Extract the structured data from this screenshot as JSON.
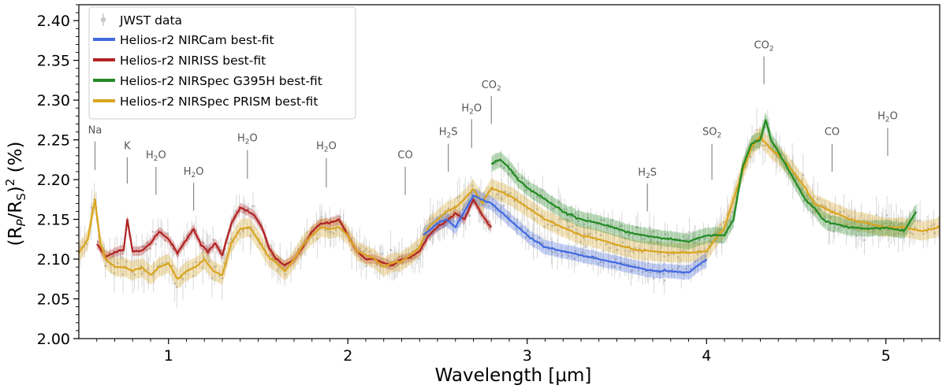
{
  "chart_data": {
    "type": "line",
    "xlabel": "Wavelength [μm]",
    "ylabel_main": "(R",
    "ylabel_sub1": "P",
    "ylabel_mid": "/R",
    "ylabel_sub2": "S",
    "ylabel_close": ")",
    "ylabel_sup": "2",
    "ylabel_unit": " (%)",
    "xlim": [
      0.5,
      5.3
    ],
    "ylim": [
      2.0,
      2.42
    ],
    "x_ticks": [
      1,
      2,
      3,
      4,
      5
    ],
    "x_tick_labels": [
      "1",
      "2",
      "3",
      "4",
      "5"
    ],
    "y_ticks": [
      2.0,
      2.05,
      2.1,
      2.15,
      2.2,
      2.25,
      2.3,
      2.35,
      2.4
    ],
    "y_tick_labels": [
      "2.00",
      "2.05",
      "2.10",
      "2.15",
      "2.20",
      "2.25",
      "2.30",
      "2.35",
      "2.40"
    ],
    "legend": {
      "placement": "top-left",
      "entries": [
        {
          "label": "JWST data",
          "kind": "errorbar",
          "color": "#c8c8c8"
        },
        {
          "label": "Helios-r2 NIRCam best-fit",
          "kind": "line",
          "color": "#4169e1"
        },
        {
          "label": "Helios-r2 NIRISS best-fit",
          "kind": "line",
          "color": "#b22222"
        },
        {
          "label": "Helios-r2 NIRSpec G395H best-fit",
          "kind": "line",
          "color": "#228b22"
        },
        {
          "label": "Helios-r2 NIRSpec PRISM best-fit",
          "kind": "line",
          "color": "#daa520"
        }
      ]
    },
    "annotations": [
      {
        "main": "Na",
        "sub": "",
        "tail": "",
        "x": 0.59,
        "y_text": 2.258,
        "y_line_top": 2.248,
        "y_line_bottom": 2.212
      },
      {
        "main": "K",
        "sub": "",
        "tail": "",
        "x": 0.77,
        "y_text": 2.238,
        "y_line_top": 2.228,
        "y_line_bottom": 2.195
      },
      {
        "main": "H",
        "sub": "2",
        "tail": "O",
        "x": 0.93,
        "y_text": 2.227,
        "y_line_top": 2.216,
        "y_line_bottom": 2.181
      },
      {
        "main": "H",
        "sub": "2",
        "tail": "O",
        "x": 1.14,
        "y_text": 2.206,
        "y_line_top": 2.196,
        "y_line_bottom": 2.161
      },
      {
        "main": "H",
        "sub": "2",
        "tail": "O",
        "x": 1.44,
        "y_text": 2.248,
        "y_line_top": 2.237,
        "y_line_bottom": 2.201
      },
      {
        "main": "H",
        "sub": "2",
        "tail": "O",
        "x": 1.88,
        "y_text": 2.238,
        "y_line_top": 2.227,
        "y_line_bottom": 2.19
      },
      {
        "main": "CO",
        "sub": "",
        "tail": "",
        "x": 2.32,
        "y_text": 2.227,
        "y_line_top": 2.216,
        "y_line_bottom": 2.181
      },
      {
        "main": "H",
        "sub": "2",
        "tail": "S",
        "x": 2.56,
        "y_text": 2.256,
        "y_line_top": 2.245,
        "y_line_bottom": 2.21
      },
      {
        "main": "H",
        "sub": "2",
        "tail": "O",
        "x": 2.69,
        "y_text": 2.286,
        "y_line_top": 2.276,
        "y_line_bottom": 2.24
      },
      {
        "main": "CO",
        "sub": "2",
        "tail": "",
        "x": 2.8,
        "y_text": 2.315,
        "y_line_top": 2.305,
        "y_line_bottom": 2.27
      },
      {
        "main": "H",
        "sub": "2",
        "tail": "S",
        "x": 3.67,
        "y_text": 2.205,
        "y_line_top": 2.195,
        "y_line_bottom": 2.16
      },
      {
        "main": "SO",
        "sub": "2",
        "tail": "",
        "x": 4.03,
        "y_text": 2.256,
        "y_line_top": 2.245,
        "y_line_bottom": 2.2
      },
      {
        "main": "CO",
        "sub": "2",
        "tail": "",
        "x": 4.32,
        "y_text": 2.365,
        "y_line_top": 2.355,
        "y_line_bottom": 2.32
      },
      {
        "main": "CO",
        "sub": "",
        "tail": "",
        "x": 4.7,
        "y_text": 2.256,
        "y_line_top": 2.245,
        "y_line_bottom": 2.21
      },
      {
        "main": "H",
        "sub": "2",
        "tail": "O",
        "x": 5.01,
        "y_text": 2.276,
        "y_line_top": 2.265,
        "y_line_bottom": 2.23
      }
    ],
    "series": [
      {
        "name": "Helios-r2 NIRISS best-fit",
        "color": "#b22222",
        "band": 0.006,
        "x": [
          0.6,
          0.65,
          0.7,
          0.75,
          0.77,
          0.8,
          0.85,
          0.9,
          0.95,
          1.0,
          1.05,
          1.1,
          1.14,
          1.18,
          1.22,
          1.26,
          1.3,
          1.35,
          1.4,
          1.44,
          1.48,
          1.52,
          1.56,
          1.6,
          1.65,
          1.7,
          1.75,
          1.8,
          1.85,
          1.9,
          1.95,
          2.0,
          2.05,
          2.1,
          2.15,
          2.2,
          2.25,
          2.3,
          2.35,
          2.4,
          2.45,
          2.5,
          2.55,
          2.6,
          2.65,
          2.7,
          2.75,
          2.8
        ],
        "y": [
          2.12,
          2.103,
          2.108,
          2.112,
          2.15,
          2.11,
          2.11,
          2.12,
          2.135,
          2.125,
          2.108,
          2.125,
          2.138,
          2.118,
          2.11,
          2.12,
          2.105,
          2.145,
          2.165,
          2.16,
          2.155,
          2.14,
          2.115,
          2.1,
          2.092,
          2.1,
          2.115,
          2.135,
          2.145,
          2.145,
          2.15,
          2.13,
          2.11,
          2.1,
          2.1,
          2.095,
          2.092,
          2.1,
          2.102,
          2.11,
          2.13,
          2.14,
          2.148,
          2.158,
          2.15,
          2.175,
          2.155,
          2.14
        ]
      },
      {
        "name": "Helios-r2 NIRSpec PRISM best-fit",
        "color": "#daa520",
        "band": 0.012,
        "x": [
          0.5,
          0.55,
          0.59,
          0.62,
          0.65,
          0.7,
          0.75,
          0.8,
          0.85,
          0.9,
          0.95,
          1.0,
          1.05,
          1.1,
          1.15,
          1.2,
          1.25,
          1.3,
          1.35,
          1.4,
          1.45,
          1.5,
          1.55,
          1.6,
          1.65,
          1.7,
          1.75,
          1.8,
          1.85,
          1.9,
          1.95,
          2.0,
          2.05,
          2.1,
          2.15,
          2.2,
          2.25,
          2.3,
          2.35,
          2.4,
          2.45,
          2.5,
          2.55,
          2.6,
          2.65,
          2.7,
          2.75,
          2.8,
          2.85,
          2.9,
          3.0,
          3.1,
          3.2,
          3.3,
          3.4,
          3.5,
          3.6,
          3.7,
          3.8,
          3.9,
          4.0,
          4.1,
          4.15,
          4.2,
          4.25,
          4.3,
          4.35,
          4.4,
          4.45,
          4.5,
          4.55,
          4.6,
          4.7,
          4.8,
          4.9,
          5.0,
          5.1,
          5.2,
          5.3
        ],
        "y": [
          2.108,
          2.125,
          2.175,
          2.12,
          2.1,
          2.09,
          2.09,
          2.085,
          2.09,
          2.08,
          2.09,
          2.095,
          2.075,
          2.085,
          2.09,
          2.1,
          2.085,
          2.08,
          2.12,
          2.138,
          2.14,
          2.125,
          2.105,
          2.095,
          2.085,
          2.1,
          2.118,
          2.13,
          2.14,
          2.138,
          2.14,
          2.13,
          2.11,
          2.105,
          2.1,
          2.09,
          2.095,
          2.098,
          2.105,
          2.115,
          2.14,
          2.15,
          2.16,
          2.165,
          2.175,
          2.188,
          2.17,
          2.19,
          2.185,
          2.18,
          2.165,
          2.15,
          2.14,
          2.13,
          2.125,
          2.118,
          2.112,
          2.11,
          2.108,
          2.108,
          2.11,
          2.14,
          2.175,
          2.21,
          2.24,
          2.255,
          2.24,
          2.23,
          2.22,
          2.205,
          2.19,
          2.17,
          2.16,
          2.15,
          2.145,
          2.14,
          2.14,
          2.135,
          2.14
        ]
      },
      {
        "name": "Helios-r2 NIRCam best-fit",
        "color": "#4169e1",
        "band": 0.009,
        "x": [
          2.42,
          2.5,
          2.55,
          2.6,
          2.65,
          2.7,
          2.75,
          2.8,
          2.85,
          2.9,
          3.0,
          3.1,
          3.2,
          3.3,
          3.4,
          3.5,
          3.6,
          3.7,
          3.8,
          3.9,
          4.0
        ],
        "y": [
          2.13,
          2.145,
          2.15,
          2.14,
          2.16,
          2.18,
          2.175,
          2.17,
          2.16,
          2.15,
          2.13,
          2.115,
          2.11,
          2.105,
          2.1,
          2.095,
          2.09,
          2.085,
          2.085,
          2.083,
          2.1
        ]
      },
      {
        "name": "Helios-r2 NIRSpec G395H best-fit",
        "color": "#228b22",
        "band": 0.01,
        "x": [
          2.8,
          2.85,
          2.9,
          2.95,
          3.0,
          3.1,
          3.2,
          3.3,
          3.4,
          3.5,
          3.6,
          3.7,
          3.8,
          3.9,
          4.0,
          4.1,
          4.15,
          4.2,
          4.25,
          4.3,
          4.33,
          4.36,
          4.4,
          4.45,
          4.5,
          4.55,
          4.6,
          4.65,
          4.7,
          4.8,
          4.9,
          5.0,
          5.1,
          5.17
        ],
        "y": [
          2.22,
          2.225,
          2.215,
          2.2,
          2.19,
          2.175,
          2.16,
          2.15,
          2.145,
          2.138,
          2.132,
          2.128,
          2.125,
          2.122,
          2.13,
          2.13,
          2.15,
          2.215,
          2.245,
          2.25,
          2.275,
          2.25,
          2.235,
          2.215,
          2.195,
          2.175,
          2.165,
          2.15,
          2.145,
          2.14,
          2.138,
          2.14,
          2.135,
          2.16
        ]
      }
    ]
  }
}
